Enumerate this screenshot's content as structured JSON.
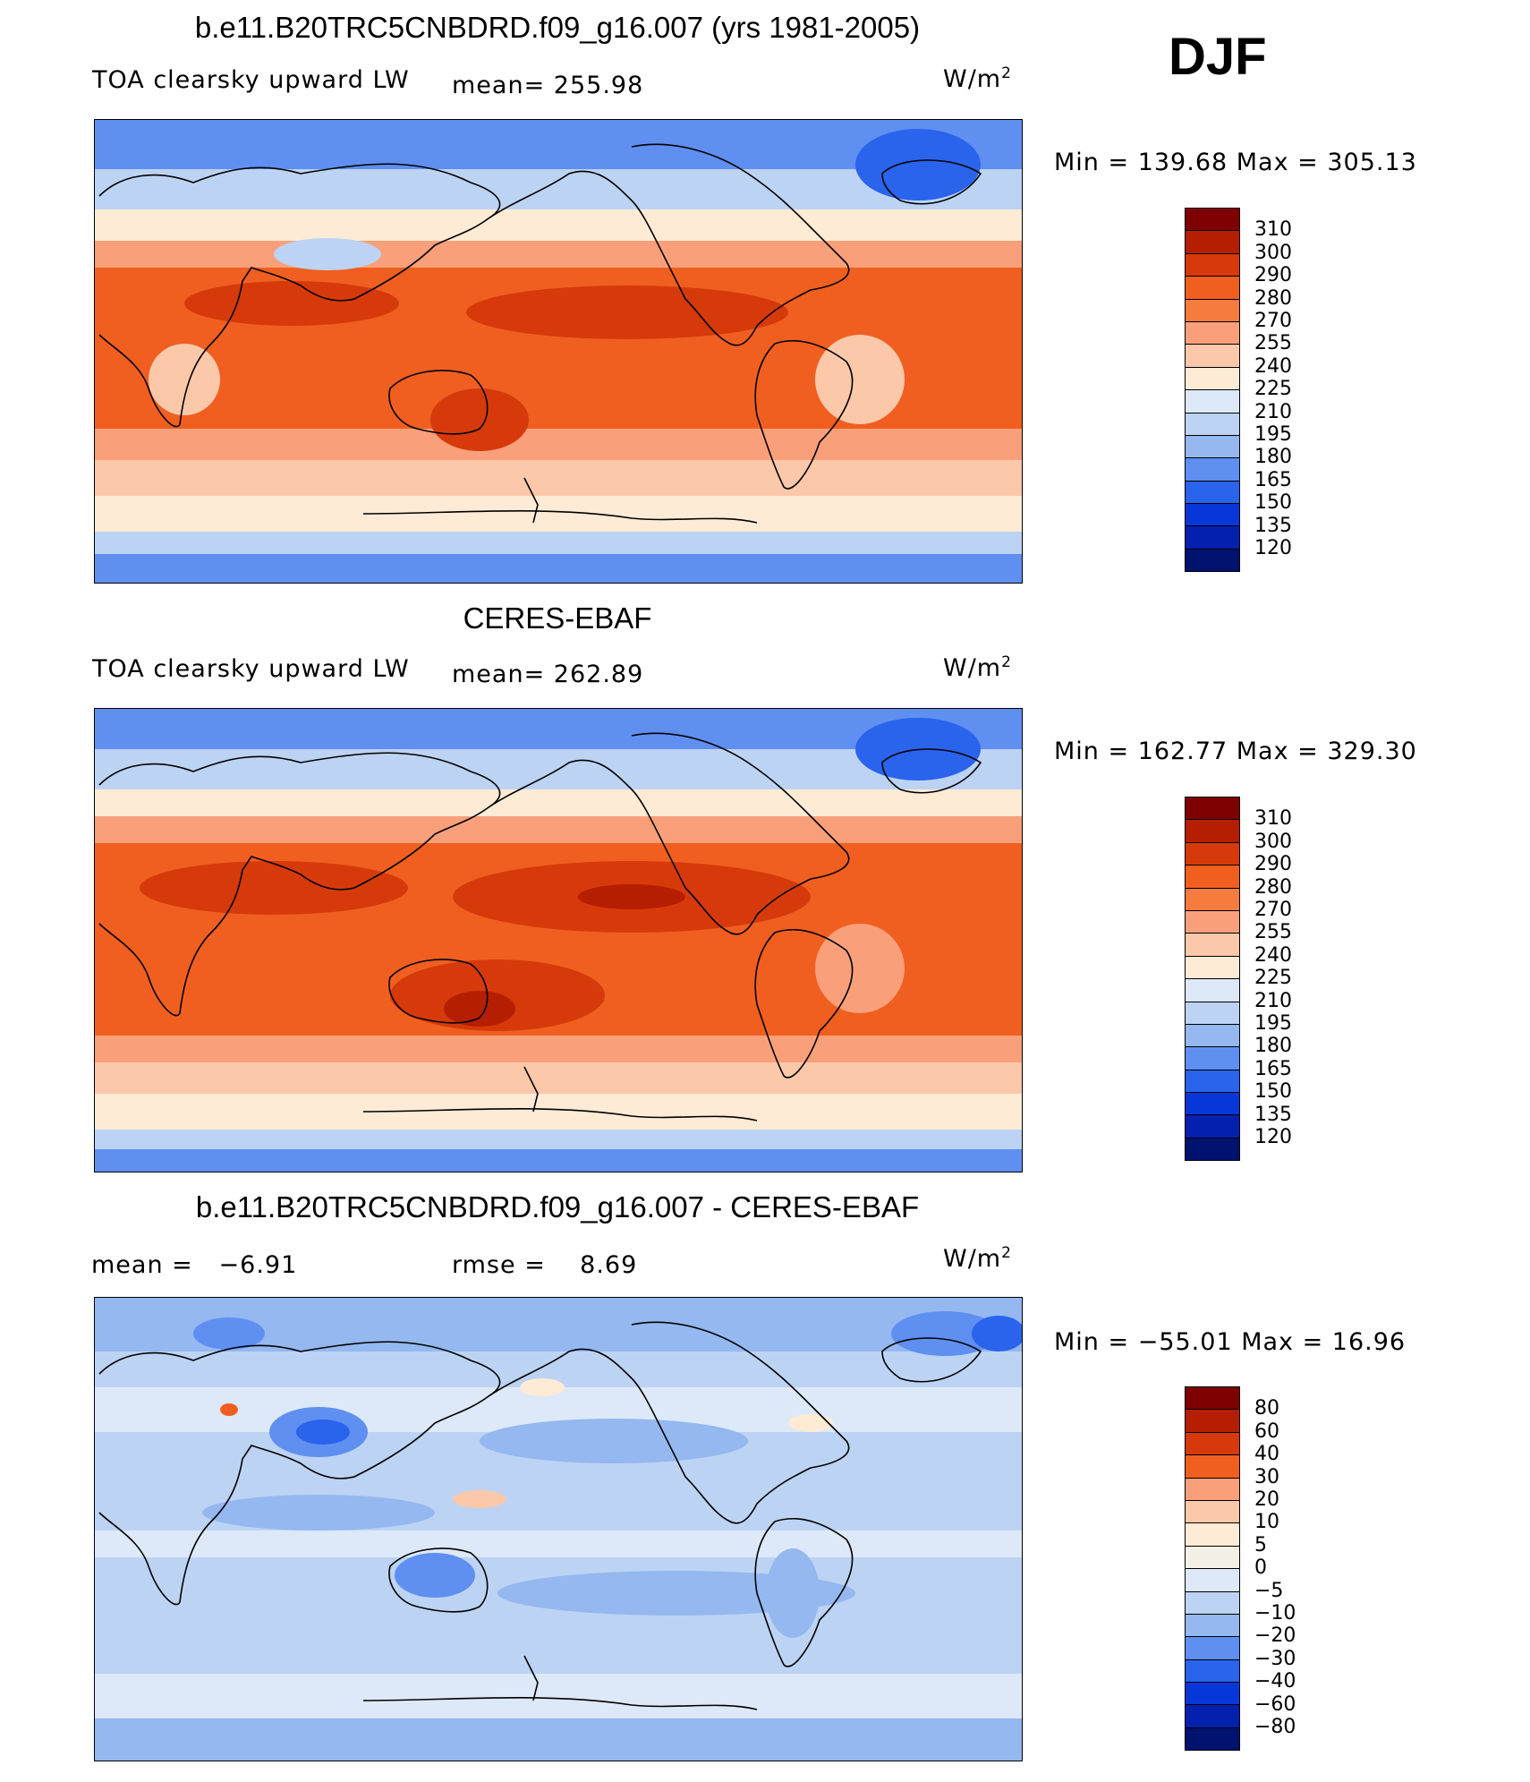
{
  "season": "DJF",
  "units_label": "W/m",
  "units_sup": "2",
  "panels": [
    {
      "title": "b.e11.B20TRC5CNBDRD.f09_g16.007 (yrs 1981-2005)",
      "left_label": "TOA clearsky upward LW",
      "mean_label": "mean=",
      "mean_value": "255.98",
      "minmax": "Min  =  139.68  Max  =  305.13",
      "colorbar_ticks": [
        "310",
        "300",
        "290",
        "280",
        "270",
        "255",
        "240",
        "225",
        "210",
        "195",
        "180",
        "165",
        "150",
        "135",
        "120"
      ]
    },
    {
      "title": "CERES-EBAF",
      "left_label": "TOA clearsky upward LW",
      "mean_label": "mean=",
      "mean_value": "262.89",
      "minmax": "Min  =  162.77  Max  =  329.30",
      "colorbar_ticks": [
        "310",
        "300",
        "290",
        "280",
        "270",
        "255",
        "240",
        "225",
        "210",
        "195",
        "180",
        "165",
        "150",
        "135",
        "120"
      ]
    },
    {
      "title": "b.e11.B20TRC5CNBDRD.f09_g16.007 - CERES-EBAF",
      "left_label": "mean  =",
      "left_value": "−6.91",
      "mean_label": "rmse  =",
      "mean_value": "8.69",
      "minmax": "Min  =  −55.01  Max  =    16.96",
      "colorbar_ticks": [
        "80",
        "60",
        "40",
        "30",
        "20",
        "10",
        "5",
        "0",
        "−5",
        "−10",
        "−20",
        "−30",
        "−40",
        "−60",
        "−80"
      ]
    }
  ],
  "colors": {
    "abs_scale": [
      "#7f0000",
      "#b51e00",
      "#d63a0a",
      "#f05f20",
      "#f57b3f",
      "#f9a07b",
      "#fcc8aa",
      "#fdebd6",
      "#dde9f8",
      "#bcd3f3",
      "#94b8ef",
      "#5f8ff0",
      "#2a63ec",
      "#0837d9",
      "#0320ae",
      "#001270"
    ],
    "diff_scale": [
      "#7f0000",
      "#b51e00",
      "#d63a0a",
      "#f05f20",
      "#f9a07b",
      "#fcc8aa",
      "#fdebd6",
      "#f5f0e6",
      "#dde9f8",
      "#bcd3f3",
      "#94b8ef",
      "#5f8ff0",
      "#2a63ec",
      "#0837d9",
      "#0320ae",
      "#001270"
    ]
  }
}
